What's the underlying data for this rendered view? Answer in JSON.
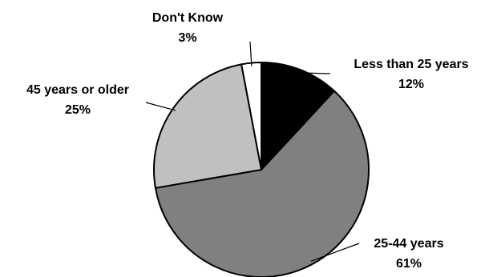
{
  "chart_data": {
    "type": "pie",
    "title": "",
    "slices": [
      {
        "label": "Less than 25 years",
        "value": 12,
        "value_label": "12%",
        "color": "#000000"
      },
      {
        "label": "25-44 years",
        "value": 61,
        "value_label": "61%",
        "color": "#808080"
      },
      {
        "label": "45 years or older",
        "value": 25,
        "value_label": "25%",
        "color": "#c0c0c0"
      },
      {
        "label": "Don't Know",
        "value": 3,
        "value_label": "3%",
        "color": "#ffffff"
      }
    ],
    "start": "12 o'clock",
    "direction": "clockwise",
    "legend": "none (labels beside slices with leader lines)"
  }
}
